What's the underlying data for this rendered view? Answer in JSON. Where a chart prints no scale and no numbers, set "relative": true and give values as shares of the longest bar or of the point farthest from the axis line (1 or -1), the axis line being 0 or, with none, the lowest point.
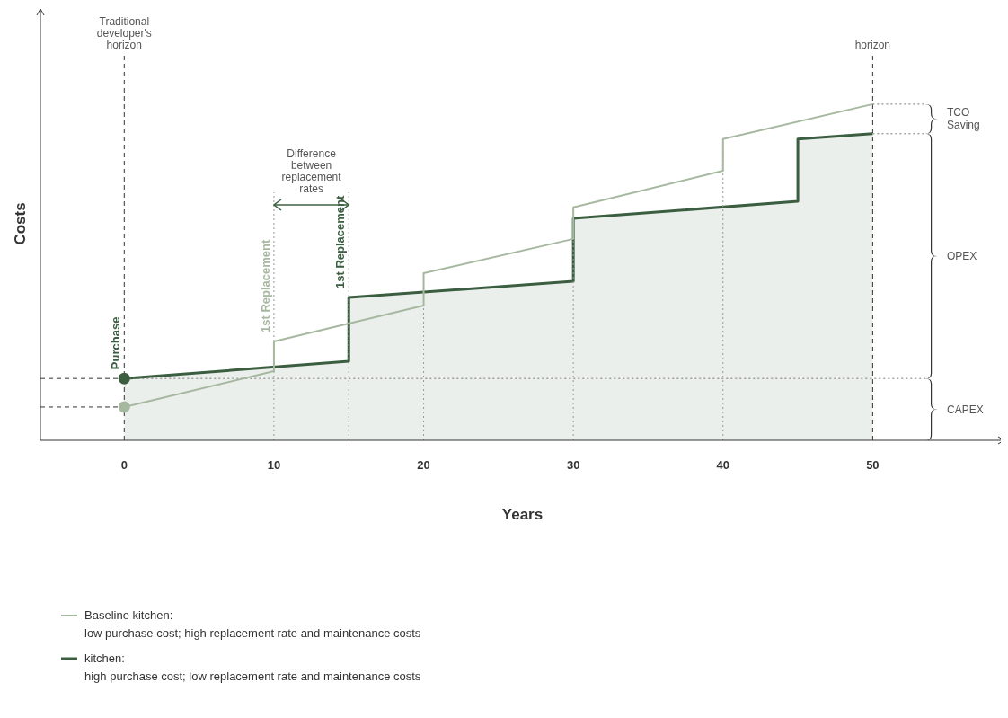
{
  "chart_data": {
    "type": "line",
    "relative": true,
    "xlabel": "Years",
    "ylabel": "Costs",
    "xlim": [
      -5.6,
      58.8
    ],
    "xticks": [
      0,
      10,
      20,
      30,
      40,
      50
    ],
    "tick_labels": "x",
    "grid": false,
    "legend": "bottom",
    "series": [
      {
        "name": "Baseline kitchen:",
        "color": "#a7b8a0",
        "x": [
          0,
          10,
          10,
          20,
          20,
          30,
          30,
          40,
          40,
          50
        ],
        "values": [
          0.099,
          0.206,
          0.294,
          0.401,
          0.497,
          0.599,
          0.693,
          0.802,
          0.896,
          1.0
        ]
      },
      {
        "name": "kitchen:",
        "type": "area",
        "color": "#3b5e41",
        "x": [
          0,
          15,
          15,
          30,
          30,
          45,
          45,
          50
        ],
        "values": [
          0.184,
          0.235,
          0.425,
          0.473,
          0.66,
          0.711,
          0.896,
          0.912
        ]
      },
      {
        "type": "scatter",
        "color": "#a7b8a0",
        "x": [
          0
        ],
        "values": [
          0.099
        ]
      },
      {
        "type": "scatter",
        "color": "#3b5e41",
        "x": [
          0
        ],
        "values": [
          0.184
        ]
      }
    ],
    "ref_lines": [
      {
        "axis": "x",
        "value": 0,
        "label": "Traditional developer's horizon",
        "line_style": "dashed"
      },
      {
        "axis": "x",
        "value": 50,
        "label": "horizon",
        "line_style": "dashed"
      },
      {
        "axis": "x",
        "value": 10,
        "line_style": "dotted"
      },
      {
        "axis": "x",
        "value": 15,
        "line_style": "dotted"
      },
      {
        "axis": "x",
        "value": 20,
        "line_style": "dotted"
      },
      {
        "axis": "x",
        "value": 30,
        "line_style": "dotted"
      },
      {
        "axis": "x",
        "value": 40,
        "line_style": "dotted"
      },
      {
        "axis": "y",
        "value": 0.099,
        "line_style": "dashed"
      },
      {
        "axis": "y",
        "value": 0.184,
        "line_style": "dashed"
      },
      {
        "axis": "y",
        "value": 0.184,
        "line_style": "dotted"
      }
    ],
    "annotations": [
      {
        "text": "Purchase",
        "x": 0,
        "y": 0.184
      },
      {
        "text": "1st Replacement",
        "x": 10,
        "y": 0.294
      },
      {
        "text": "1st Replacement",
        "x": 15,
        "y": 0.425
      },
      "Difference between replacement rates",
      "CAPEX",
      "OPEX",
      "TCO Saving",
      "low purchase cost; high replacement rate and maintenance costs",
      "high purchase cost; low replacement rate and maintenance costs"
    ]
  }
}
